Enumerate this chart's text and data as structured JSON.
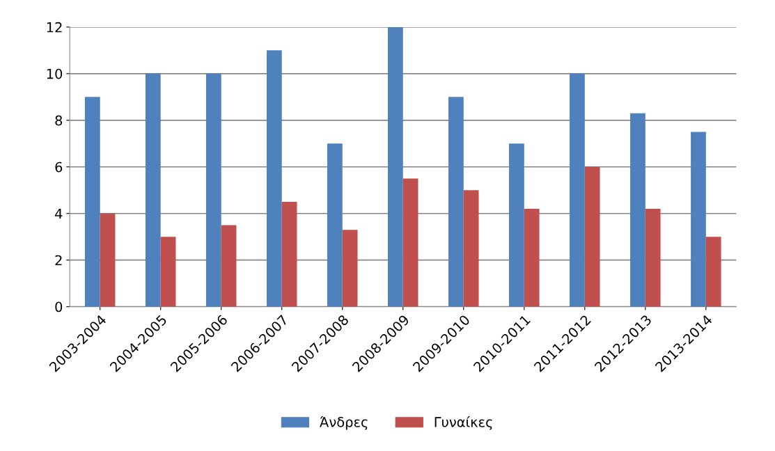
{
  "chart_data": {
    "type": "bar",
    "categories": [
      "2003-2004",
      "2004-2005",
      "2005-2006",
      "2006-2007",
      "2007-2008",
      "2008-2009",
      "2009-2010",
      "2010-2011",
      "2011-2012",
      "2012-2013",
      "2013-2014"
    ],
    "series": [
      {
        "name": "Άνδρες",
        "color": "#4f81bd",
        "values": [
          9,
          10,
          10,
          11,
          7,
          12,
          9,
          7,
          10,
          8.3,
          7.5
        ]
      },
      {
        "name": "Γυναίκες",
        "color": "#c0504d",
        "values": [
          4,
          3,
          3.5,
          4.5,
          3.3,
          5.5,
          5,
          4.2,
          6,
          4.2,
          3
        ]
      }
    ],
    "ylim": [
      0,
      12
    ],
    "yticks": [
      0,
      2,
      4,
      6,
      8,
      10,
      12
    ],
    "grid": "y",
    "legend": "bottom"
  }
}
